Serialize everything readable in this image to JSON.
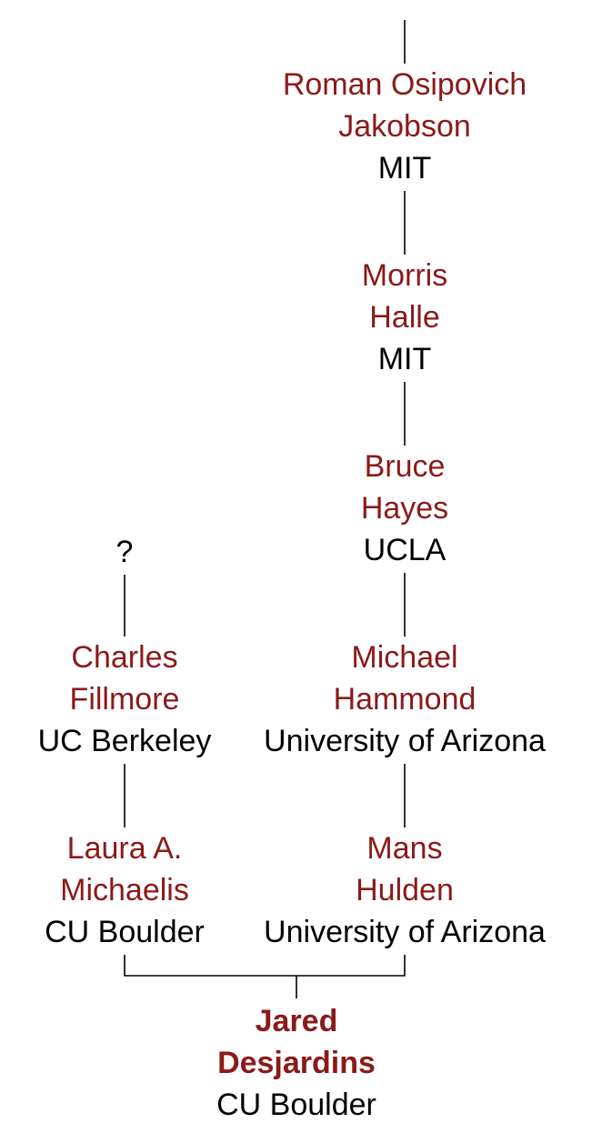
{
  "colors": {
    "name": "#8b1a1a",
    "institution": "#000000",
    "line": "#000000"
  },
  "nodes": {
    "jakobson": {
      "first": "Roman Osipovich",
      "last": "Jakobson",
      "institution": "MIT"
    },
    "halle": {
      "first": "Morris",
      "last": "Halle",
      "institution": "MIT"
    },
    "hayes": {
      "first": "Bruce",
      "last": "Hayes",
      "institution": "UCLA"
    },
    "unknown": {
      "label": "?"
    },
    "fillmore": {
      "first": "Charles",
      "last": "Fillmore",
      "institution": "UC Berkeley"
    },
    "hammond": {
      "first": "Michael",
      "last": "Hammond",
      "institution": "University of Arizona"
    },
    "michaelis": {
      "first": "Laura A.",
      "last": "Michaelis",
      "institution": "CU Boulder"
    },
    "hulden": {
      "first": "Mans",
      "last": "Hulden",
      "institution": "University of Arizona"
    },
    "desjardins": {
      "first": "Jared",
      "last": "Desjardins",
      "institution": "CU Boulder"
    }
  }
}
